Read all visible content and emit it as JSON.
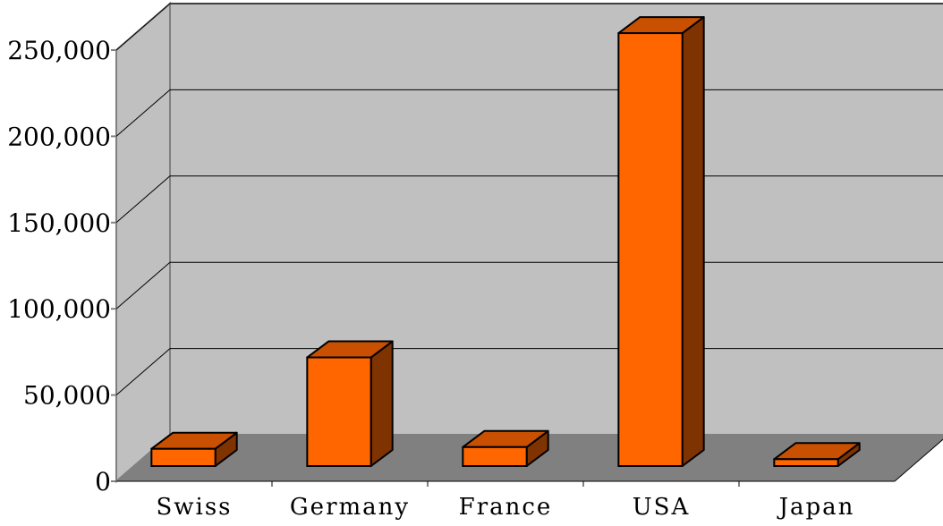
{
  "chart_data": {
    "type": "bar",
    "title": "",
    "xlabel": "",
    "ylabel": "",
    "categories": [
      "Swiss",
      "Germany",
      "France",
      "USA",
      "Japan"
    ],
    "values": [
      10000,
      63000,
      11000,
      251000,
      4000
    ],
    "ylim": [
      0,
      250000
    ],
    "yticks": [
      0,
      50000,
      100000,
      150000,
      200000,
      250000
    ],
    "ytick_labels": [
      "0",
      "50,000",
      "100,000",
      "150,000",
      "200,000",
      "250,000"
    ],
    "grid": true,
    "legend": "none",
    "style": "3d-column"
  },
  "colors": {
    "bar_front": "#ff6600",
    "bar_top": "#c85000",
    "bar_side": "#7f3300",
    "wall": "#c0c0c0",
    "floor": "#808080",
    "axis": "#808080",
    "grid": "#000000"
  }
}
